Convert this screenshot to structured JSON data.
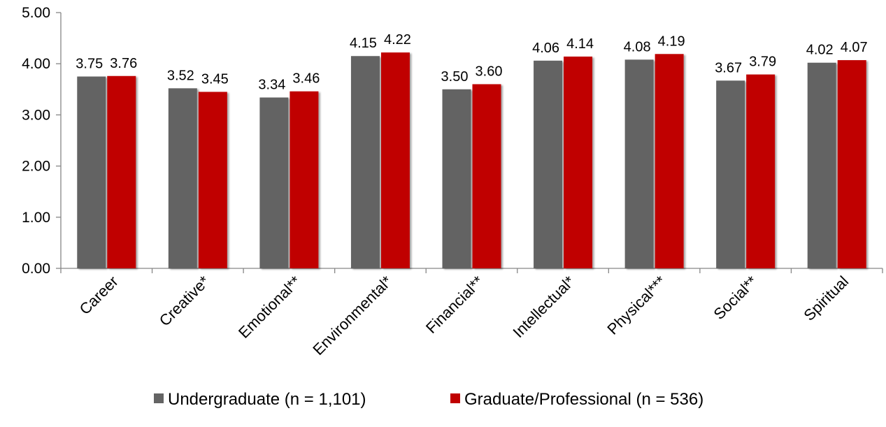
{
  "chart_data": {
    "type": "bar",
    "categories": [
      "Career",
      "Creative*",
      "Emotional**",
      "Environmental*",
      "Financial**",
      "Intellectual*",
      "Physical***",
      "Social**",
      "Spiritual"
    ],
    "series": [
      {
        "name": "Undergraduate (n = 1,101)",
        "color": "#646464",
        "values": [
          3.75,
          3.52,
          3.34,
          4.15,
          3.5,
          4.06,
          4.08,
          3.67,
          4.02
        ]
      },
      {
        "name": "Graduate/Professional (n = 536)",
        "color": "#C00000",
        "values": [
          3.76,
          3.45,
          3.46,
          4.22,
          3.6,
          4.14,
          4.19,
          3.79,
          4.07
        ]
      }
    ],
    "ylim": [
      0,
      5
    ],
    "yticks": [
      "0.00",
      "1.00",
      "2.00",
      "3.00",
      "4.00",
      "5.00"
    ],
    "title": "",
    "xlabel": "",
    "ylabel": "",
    "grid": false,
    "legend_position": "bottom",
    "data_labels": true
  }
}
